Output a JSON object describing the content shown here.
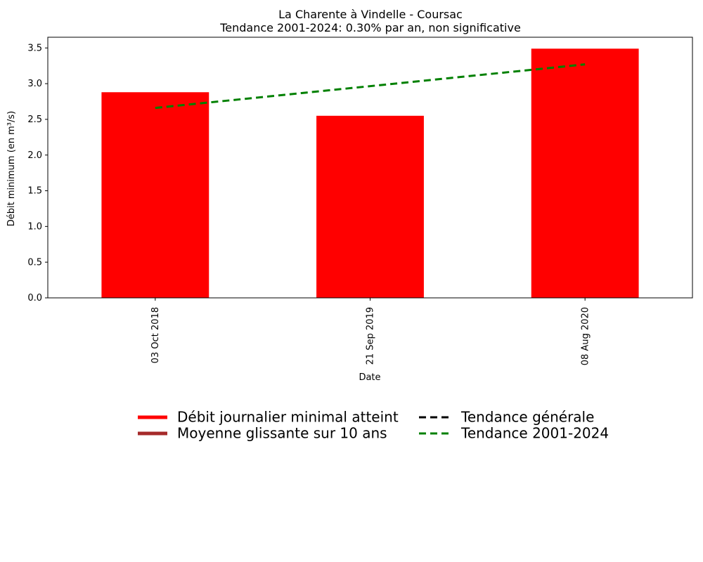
{
  "chart_data": {
    "type": "bar",
    "title": "La Charente à Vindelle - Coursac",
    "subtitle": "Tendance 2001-2024: 0.30% par an, non significative",
    "xlabel": "Date",
    "ylabel": "Débit minimum (en m³/s)",
    "categories": [
      "03 Oct 2018",
      "21 Sep 2019",
      "08 Aug 2020"
    ],
    "values": [
      2.88,
      2.55,
      3.49
    ],
    "bar_color": "#ff0000",
    "ylim": [
      0,
      3.65
    ],
    "yticks": [
      "0.0",
      "0.5",
      "1.0",
      "1.5",
      "2.0",
      "2.5",
      "3.0",
      "3.5"
    ],
    "grid": false,
    "series": [
      {
        "name": "Tendance 2001-2024",
        "type": "line",
        "style": "dashed",
        "color": "#008000",
        "x_index": [
          0,
          2
        ],
        "values": [
          2.66,
          3.27
        ]
      }
    ],
    "legend": {
      "position": "below-chart",
      "frame": false,
      "columns": 2,
      "entries": [
        {
          "label": "Débit journalier minimal atteint",
          "color": "#ff0000",
          "style": "solid"
        },
        {
          "label": "Moyenne glissante sur 10 ans",
          "color": "#a52a2a",
          "style": "solid"
        },
        {
          "label": "Tendance générale",
          "color": "#000000",
          "style": "dashed"
        },
        {
          "label": "Tendance 2001-2024",
          "color": "#008000",
          "style": "dashed"
        }
      ]
    }
  }
}
